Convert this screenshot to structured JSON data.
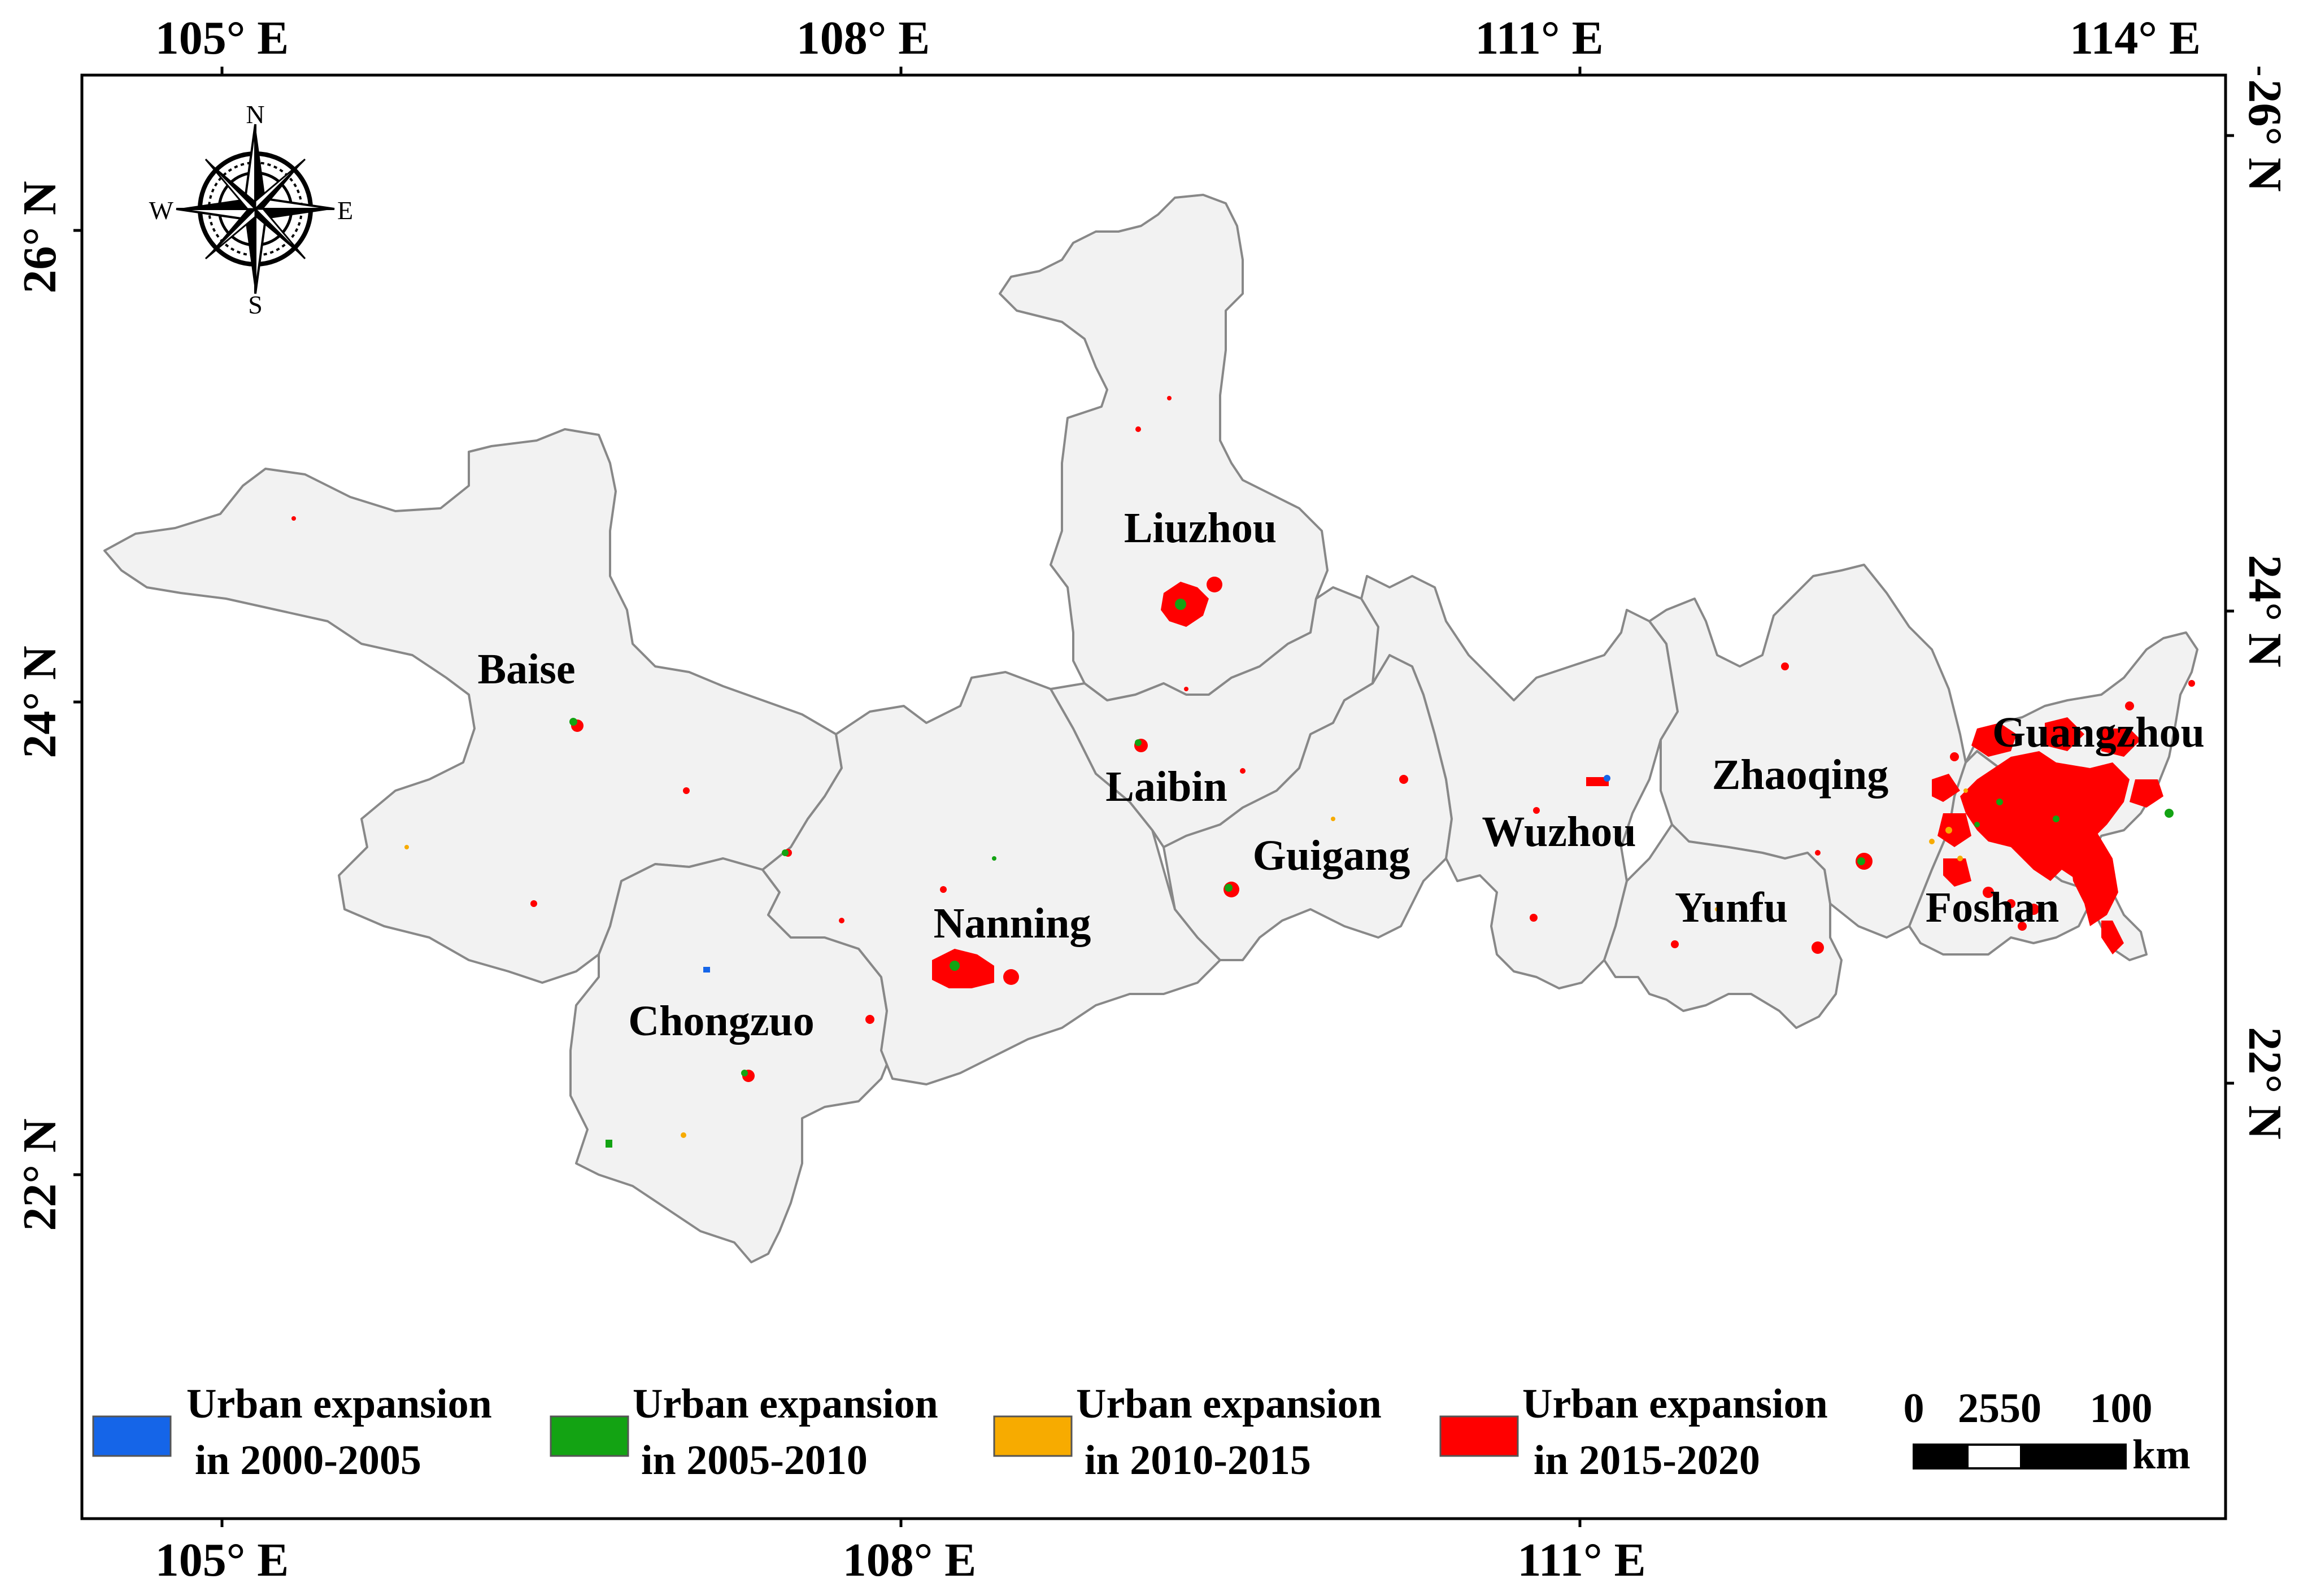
{
  "map": {
    "longitude_labels": [
      "105° E",
      "108° E",
      "111° E",
      "114° E"
    ],
    "latitude_labels_left": [
      "26° N",
      "24° N",
      "22° N"
    ],
    "latitude_labels_right": [
      "26° N",
      "24° N",
      "22° N"
    ],
    "cities": [
      {
        "name": "Liuzhou"
      },
      {
        "name": "Baise"
      },
      {
        "name": "Laibin"
      },
      {
        "name": "Guigang"
      },
      {
        "name": "Wuzhou"
      },
      {
        "name": "Zhaoqing"
      },
      {
        "name": "Guangzhou"
      },
      {
        "name": "Nanning"
      },
      {
        "name": "Yunfu"
      },
      {
        "name": "Foshan"
      },
      {
        "name": "Chongzuo"
      }
    ]
  },
  "compass": {
    "n": "N",
    "s": "S",
    "e": "E",
    "w": "W"
  },
  "legend": {
    "items": [
      {
        "line1": "Urban expansion",
        "line2": "in 2000-2005",
        "color": "#1565e8"
      },
      {
        "line1": "Urban expansion",
        "line2": "in 2005-2010",
        "color": "#13a313"
      },
      {
        "line1": "Urban expansion",
        "line2": "in 2010-2015",
        "color": "#f7ab00"
      },
      {
        "line1": "Urban expansion",
        "line2": "in 2015-2020",
        "color": "#ff0000"
      }
    ]
  },
  "scalebar": {
    "ticks": [
      "0",
      "2550",
      "100"
    ],
    "unit": "km"
  },
  "colors": {
    "region_fill": "#f2f2f2",
    "region_stroke": "#888888",
    "urban_2000_2005": "#1565e8",
    "urban_2005_2010": "#13a313",
    "urban_2010_2015": "#f7ab00",
    "urban_2015_2020": "#ff0000"
  }
}
